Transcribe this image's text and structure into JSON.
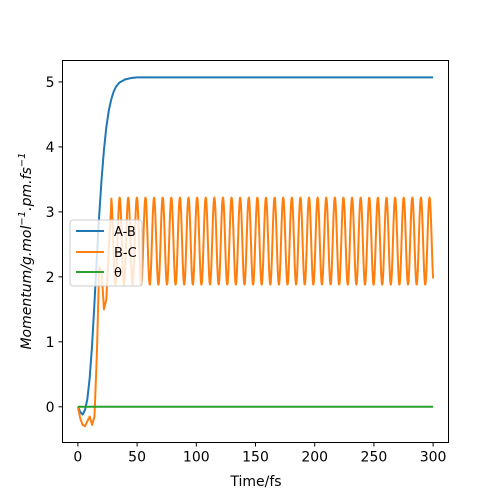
{
  "chart_data": {
    "type": "line",
    "title": "",
    "xlabel": "Time/fs",
    "ylabel_parts": {
      "main": "Momentum/g.mol",
      "exp1": "−1",
      "mid": ".pm.fs",
      "exp2": "−1"
    },
    "xlim": [
      -13,
      313
    ],
    "ylim": [
      -0.55,
      5.33
    ],
    "x_ticks": [
      0,
      50,
      100,
      150,
      200,
      250,
      300
    ],
    "y_ticks": [
      0,
      1,
      2,
      3,
      4,
      5
    ],
    "grid": false,
    "legend_position": "center-left",
    "series": [
      {
        "name": "A-B",
        "color": "#1f77b4",
        "x": [
          0,
          2,
          4,
          6,
          8,
          10,
          12,
          14,
          16,
          18,
          20,
          22,
          24,
          26,
          28,
          30,
          32,
          35,
          40,
          45,
          50,
          60,
          80,
          100,
          150,
          200,
          250,
          300
        ],
        "y": [
          0.0,
          -0.08,
          -0.12,
          -0.05,
          0.12,
          0.45,
          0.95,
          1.6,
          2.3,
          2.95,
          3.5,
          3.95,
          4.3,
          4.55,
          4.72,
          4.84,
          4.92,
          4.99,
          5.04,
          5.06,
          5.07,
          5.07,
          5.07,
          5.07,
          5.07,
          5.07,
          5.07,
          5.07
        ]
      },
      {
        "name": "B-C",
        "color": "#ff7f0e",
        "x": [
          0,
          2,
          4,
          6,
          8,
          10,
          12,
          14,
          16,
          18,
          20,
          22,
          24,
          26,
          28
        ],
        "y": [
          0.0,
          -0.18,
          -0.28,
          -0.3,
          -0.22,
          -0.15,
          -0.28,
          -0.15,
          0.8,
          2.15,
          2.1,
          1.5,
          1.65,
          2.4,
          3.05
        ],
        "oscillation": {
          "start_x": 28,
          "end_x": 300,
          "min": 1.88,
          "max": 3.22,
          "period": 7.27
        }
      },
      {
        "name": "θ",
        "color": "#2ca02c",
        "x": [
          0,
          300
        ],
        "y": [
          0,
          0
        ]
      }
    ]
  }
}
